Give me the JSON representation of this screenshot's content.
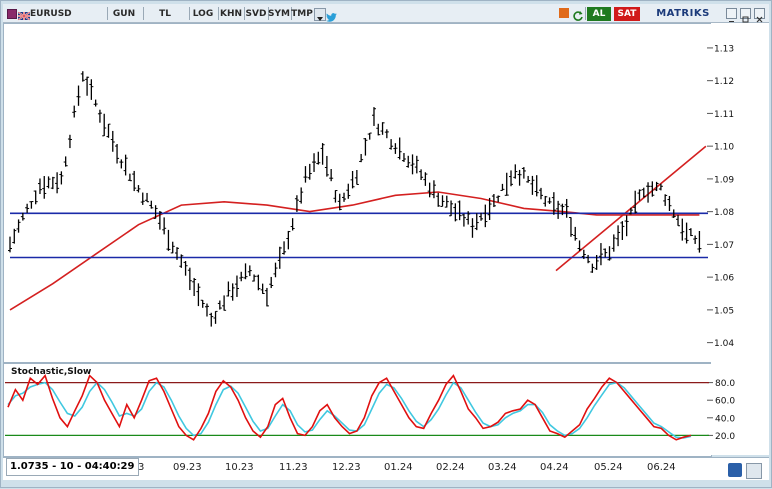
{
  "toolbar": {
    "symbol": "EURUSD",
    "buttons": [
      "GUN",
      "TL",
      "LOG",
      "KHN",
      "SVD",
      "SYM",
      "TMP"
    ],
    "buy_label": "AL",
    "sell_label": "SAT",
    "brand": "MATRIKS",
    "colors": {
      "buy": "#1f7a1f",
      "sell": "#d11a1a",
      "brand": "#1b3a7a"
    }
  },
  "status": {
    "readout": "1.0735 - 10 - 04:40:29"
  },
  "x_axis": {
    "labels": [
      "3",
      "09.23",
      "10.23",
      "11.23",
      "12.23",
      "01.24",
      "02.24",
      "03.24",
      "04.24",
      "05.24",
      "06.24"
    ]
  },
  "chart_data": [
    {
      "type": "bar",
      "subtype": "ohlc",
      "title": "",
      "y_ticks": [
        1.04,
        1.05,
        1.06,
        1.07,
        1.08,
        1.09,
        1.1,
        1.11,
        1.12,
        1.13
      ],
      "ylim": [
        1.035,
        1.137
      ],
      "series": [
        {
          "name": "Price",
          "color": "#000000",
          "anchors_by_bar": [
            [
              0,
              1.07
            ],
            [
              6,
              1.078
            ],
            [
              14,
              1.088
            ],
            [
              24,
              1.09
            ],
            [
              34,
              1.122
            ],
            [
              42,
              1.11
            ],
            [
              52,
              1.096
            ],
            [
              60,
              1.087
            ],
            [
              68,
              1.08
            ],
            [
              76,
              1.07
            ],
            [
              86,
              1.057
            ],
            [
              94,
              1.047
            ],
            [
              102,
              1.055
            ],
            [
              112,
              1.062
            ],
            [
              120,
              1.055
            ],
            [
              128,
              1.068
            ],
            [
              138,
              1.09
            ],
            [
              146,
              1.098
            ],
            [
              154,
              1.082
            ],
            [
              162,
              1.092
            ],
            [
              170,
              1.108
            ],
            [
              178,
              1.102
            ],
            [
              188,
              1.095
            ],
            [
              198,
              1.086
            ],
            [
              208,
              1.08
            ],
            [
              216,
              1.076
            ],
            [
              226,
              1.083
            ],
            [
              236,
              1.093
            ],
            [
              244,
              1.088
            ],
            [
              252,
              1.082
            ],
            [
              260,
              1.08
            ],
            [
              266,
              1.07
            ],
            [
              272,
              1.064
            ],
            [
              280,
              1.068
            ],
            [
              288,
              1.076
            ],
            [
              296,
              1.087
            ],
            [
              304,
              1.087
            ],
            [
              310,
              1.08
            ],
            [
              316,
              1.073
            ],
            [
              322,
              1.071
            ]
          ]
        }
      ],
      "lines": [
        {
          "name": "moving-average",
          "color": "#d42020",
          "points_by_bar": [
            [
              0,
              1.05
            ],
            [
              20,
              1.058
            ],
            [
              40,
              1.067
            ],
            [
              60,
              1.076
            ],
            [
              80,
              1.082
            ],
            [
              100,
              1.083
            ],
            [
              120,
              1.082
            ],
            [
              140,
              1.08
            ],
            [
              160,
              1.082
            ],
            [
              180,
              1.085
            ],
            [
              200,
              1.086
            ],
            [
              220,
              1.084
            ],
            [
              240,
              1.081
            ],
            [
              258,
              1.08
            ],
            [
              274,
              1.079
            ],
            [
              290,
              1.079
            ],
            [
              305,
              1.079
            ],
            [
              322,
              1.079
            ]
          ]
        },
        {
          "name": "trendline",
          "color": "#d42020",
          "points_by_bar": [
            [
              255,
              1.062
            ],
            [
              325,
              1.1
            ]
          ]
        },
        {
          "name": "support-line-top",
          "color": "#1a2aa8",
          "y": 1.0795
        },
        {
          "name": "support-line-bottom",
          "color": "#1a2aa8",
          "y": 1.066
        }
      ]
    },
    {
      "type": "line",
      "title": "Stochastic,Slow",
      "y_ticks": [
        20,
        40,
        60,
        80
      ],
      "ylim": [
        0,
        100
      ],
      "bands": [
        {
          "y": 80,
          "color": "#8b1a1a"
        },
        {
          "y": 20,
          "color": "#1a8a1a"
        }
      ],
      "series": [
        {
          "name": "%K",
          "color": "#e01010",
          "values": [
            52,
            72,
            60,
            85,
            78,
            88,
            62,
            40,
            30,
            48,
            65,
            88,
            80,
            60,
            45,
            30,
            55,
            40,
            60,
            82,
            85,
            70,
            50,
            30,
            20,
            15,
            28,
            45,
            70,
            82,
            75,
            60,
            40,
            25,
            18,
            30,
            55,
            62,
            40,
            22,
            20,
            30,
            48,
            55,
            40,
            30,
            22,
            25,
            40,
            65,
            80,
            85,
            70,
            55,
            40,
            30,
            28,
            45,
            60,
            78,
            88,
            70,
            50,
            40,
            28,
            30,
            35,
            45,
            48,
            50,
            60,
            55,
            40,
            25,
            22,
            18,
            25,
            32,
            50,
            62,
            75,
            85,
            80,
            70,
            60,
            50,
            40,
            30,
            28,
            20,
            15,
            18,
            20
          ]
        },
        {
          "name": "%D",
          "color": "#40c8e0",
          "values": [
            55,
            65,
            68,
            75,
            78,
            80,
            72,
            58,
            45,
            42,
            52,
            70,
            80,
            72,
            58,
            42,
            45,
            42,
            50,
            70,
            80,
            75,
            60,
            42,
            28,
            20,
            22,
            35,
            55,
            72,
            76,
            68,
            52,
            36,
            25,
            28,
            42,
            55,
            48,
            32,
            24,
            26,
            38,
            48,
            42,
            34,
            26,
            25,
            32,
            50,
            68,
            78,
            74,
            62,
            48,
            36,
            30,
            38,
            50,
            66,
            80,
            74,
            60,
            46,
            34,
            30,
            32,
            40,
            45,
            48,
            55,
            55,
            46,
            32,
            25,
            20,
            22,
            28,
            40,
            54,
            66,
            78,
            80,
            74,
            64,
            54,
            44,
            34,
            30,
            24,
            18,
            17,
            19
          ]
        }
      ]
    }
  ]
}
